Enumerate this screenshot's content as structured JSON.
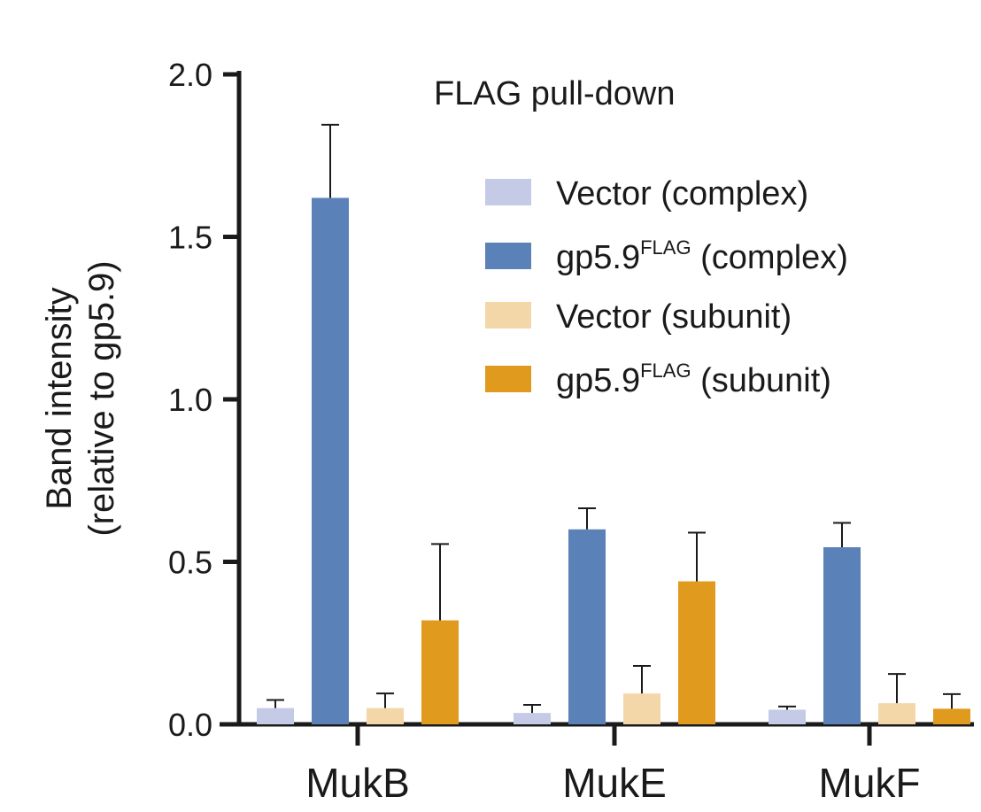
{
  "chart_data": {
    "type": "bar",
    "title": "FLAG pull-down",
    "ylabel_line1": "Band intensity",
    "ylabel_line2": "(relative to gp5.9)",
    "xlabel": "",
    "ylim": [
      0,
      2.0
    ],
    "yticks": [
      "0.0",
      "0.5",
      "1.0",
      "1.5",
      "2.0"
    ],
    "categories": [
      "MukB",
      "MukE",
      "MukF"
    ],
    "legend_position": "top-right",
    "grid": false,
    "series": [
      {
        "name": "Vector (complex)",
        "name_base": "Vector (complex)",
        "name_sup": "",
        "name_tail": "",
        "color": "#c5cbe6",
        "values": [
          0.05,
          0.035,
          0.045
        ],
        "errors": [
          0.025,
          0.025,
          0.01
        ]
      },
      {
        "name": "gp5.9FLAG (complex)",
        "name_base": "gp5.9",
        "name_sup": "FLAG",
        "name_tail": " (complex)",
        "color": "#5b82b8",
        "values": [
          1.62,
          0.6,
          0.545
        ],
        "errors": [
          0.225,
          0.065,
          0.075
        ]
      },
      {
        "name": "Vector (subunit)",
        "name_base": "Vector (subunit)",
        "name_sup": "",
        "name_tail": "",
        "color": "#f4d7a8",
        "values": [
          0.05,
          0.095,
          0.065
        ],
        "errors": [
          0.045,
          0.085,
          0.09
        ]
      },
      {
        "name": "gp5.9FLAG (subunit)",
        "name_base": "gp5.9",
        "name_sup": "FLAG",
        "name_tail": " (subunit)",
        "color": "#e09a1e",
        "values": [
          0.32,
          0.44,
          0.048
        ],
        "errors": [
          0.235,
          0.15,
          0.045
        ]
      }
    ]
  }
}
